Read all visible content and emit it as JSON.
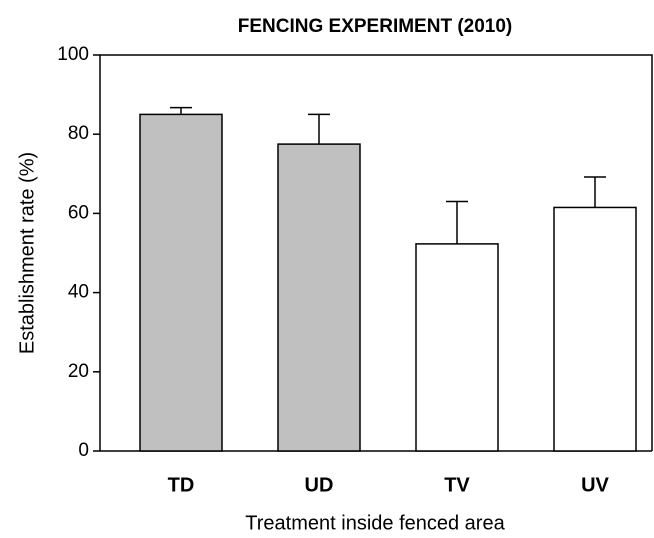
{
  "chart_data": {
    "type": "bar",
    "title": "FENCING EXPERIMENT (2010)",
    "x_label": "Treatment inside fenced area",
    "y_label": "Establishment rate (%)",
    "categories": [
      "TD",
      "UD",
      "TV",
      "UV"
    ],
    "values": [
      85,
      77.5,
      52.3,
      61.5
    ],
    "errors": [
      1.7,
      7.5,
      10.7,
      7.7
    ],
    "colors": [
      "#c0c0c0",
      "#c0c0c0",
      "#ffffff",
      "#ffffff"
    ],
    "ylim": [
      0,
      100
    ],
    "yticks": [
      0,
      20,
      40,
      60,
      80,
      100
    ]
  }
}
